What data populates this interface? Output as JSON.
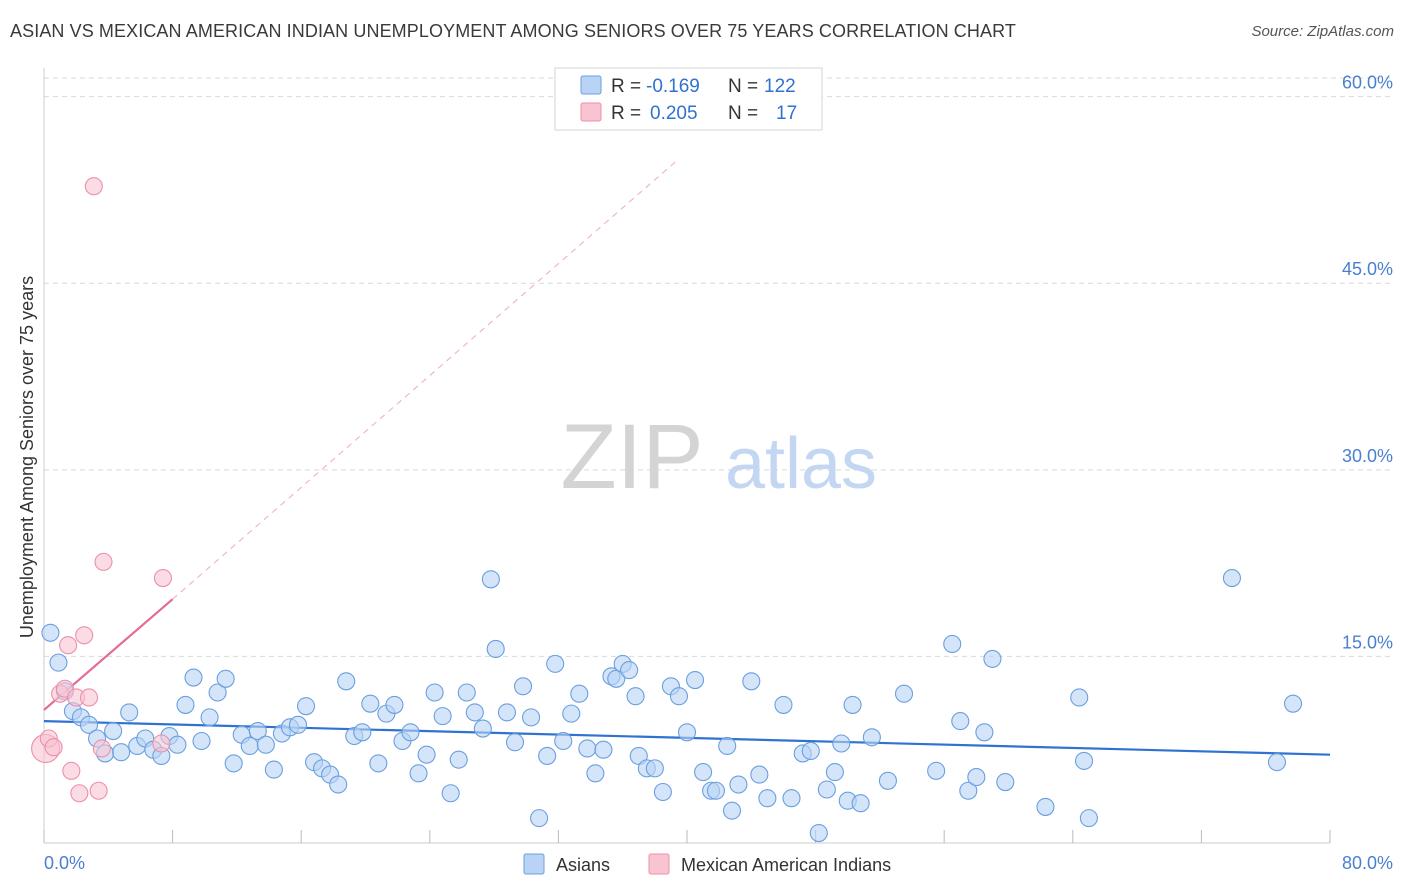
{
  "title": "ASIAN VS MEXICAN AMERICAN INDIAN UNEMPLOYMENT AMONG SENIORS OVER 75 YEARS CORRELATION CHART",
  "source": "Source: ZipAtlas.com",
  "watermark": {
    "zip": "ZIP",
    "atlas": "atlas"
  },
  "colors": {
    "asian_fill": "#b9d3f5",
    "asian_stroke": "#6a9fe0",
    "asian_line": "#2f72d0",
    "mex_fill": "#f8c4d2",
    "mex_stroke": "#ec8fab",
    "mex_line": "#e46b93",
    "grid": "#d9d9d9",
    "axis_text": "#4a7fd0"
  },
  "legend": {
    "rows": [
      {
        "r_label": "R =",
        "r_value": "-0.169",
        "n_label": "N =",
        "n_value": "122"
      },
      {
        "r_label": "R =",
        "r_value": "0.205",
        "n_label": "N =",
        "n_value": "17"
      }
    ]
  },
  "chart_data": {
    "type": "scatter",
    "title": "ASIAN VS MEXICAN AMERICAN INDIAN UNEMPLOYMENT AMONG SENIORS OVER 75 YEARS CORRELATION CHART",
    "xlabel": "",
    "ylabel": "Unemployment Among Seniors over 75 years",
    "xlim": [
      0,
      80
    ],
    "ylim": [
      0,
      61.5
    ],
    "x_tick_labels": [
      "0.0%",
      "80.0%"
    ],
    "y_ticks": [
      15,
      30,
      45,
      60
    ],
    "y_tick_labels": [
      "15.0%",
      "30.0%",
      "45.0%",
      "60.0%"
    ],
    "grid": true,
    "legend_position": "top-center",
    "series": [
      {
        "name": "Asians",
        "stats": {
          "R": -0.169,
          "N": 122
        },
        "trend": {
          "x": [
            0,
            80
          ],
          "y": [
            9.8,
            7.1
          ]
        },
        "points": [
          [
            0.4,
            16.9
          ],
          [
            0.9,
            14.5
          ],
          [
            1.3,
            12.2
          ],
          [
            1.8,
            10.6
          ],
          [
            2.3,
            10.1
          ],
          [
            2.8,
            9.5
          ],
          [
            3.3,
            8.4
          ],
          [
            3.8,
            7.2
          ],
          [
            4.3,
            9.0
          ],
          [
            4.8,
            7.3
          ],
          [
            5.3,
            10.5
          ],
          [
            5.8,
            7.8
          ],
          [
            6.3,
            8.4
          ],
          [
            6.8,
            7.5
          ],
          [
            7.3,
            7.0
          ],
          [
            7.8,
            8.6
          ],
          [
            8.3,
            7.9
          ],
          [
            8.8,
            11.1
          ],
          [
            9.3,
            13.3
          ],
          [
            9.8,
            8.2
          ],
          [
            10.3,
            10.1
          ],
          [
            10.8,
            12.1
          ],
          [
            11.3,
            13.2
          ],
          [
            11.8,
            6.4
          ],
          [
            12.3,
            8.7
          ],
          [
            12.8,
            7.8
          ],
          [
            13.3,
            9.0
          ],
          [
            13.8,
            7.9
          ],
          [
            14.3,
            5.9
          ],
          [
            14.8,
            8.8
          ],
          [
            15.3,
            9.3
          ],
          [
            15.8,
            9.5
          ],
          [
            16.3,
            11.0
          ],
          [
            16.8,
            6.5
          ],
          [
            17.3,
            6.0
          ],
          [
            17.8,
            5.5
          ],
          [
            18.3,
            4.7
          ],
          [
            18.8,
            13.0
          ],
          [
            19.3,
            8.6
          ],
          [
            19.8,
            8.9
          ],
          [
            20.3,
            11.2
          ],
          [
            20.8,
            6.4
          ],
          [
            21.3,
            10.4
          ],
          [
            21.8,
            11.1
          ],
          [
            22.3,
            8.2
          ],
          [
            22.8,
            8.9
          ],
          [
            23.3,
            5.6
          ],
          [
            23.8,
            7.1
          ],
          [
            24.3,
            12.1
          ],
          [
            24.8,
            10.2
          ],
          [
            25.3,
            4.0
          ],
          [
            25.8,
            6.7
          ],
          [
            26.3,
            12.1
          ],
          [
            26.8,
            10.5
          ],
          [
            27.3,
            9.2
          ],
          [
            27.8,
            21.2
          ],
          [
            28.1,
            15.6
          ],
          [
            28.8,
            10.5
          ],
          [
            29.3,
            8.1
          ],
          [
            29.8,
            12.6
          ],
          [
            30.3,
            10.1
          ],
          [
            30.8,
            2.0
          ],
          [
            31.3,
            7.0
          ],
          [
            31.8,
            14.4
          ],
          [
            32.3,
            8.2
          ],
          [
            32.8,
            10.4
          ],
          [
            33.3,
            12.0
          ],
          [
            33.8,
            7.6
          ],
          [
            34.3,
            5.6
          ],
          [
            34.8,
            7.5
          ],
          [
            35.3,
            13.4
          ],
          [
            35.6,
            13.2
          ],
          [
            36.0,
            14.4
          ],
          [
            36.4,
            13.9
          ],
          [
            36.8,
            11.8
          ],
          [
            37.0,
            7.0
          ],
          [
            37.5,
            6.0
          ],
          [
            38.0,
            6.0
          ],
          [
            38.5,
            4.1
          ],
          [
            39.0,
            12.6
          ],
          [
            39.5,
            11.8
          ],
          [
            40.0,
            8.9
          ],
          [
            40.5,
            13.1
          ],
          [
            41.0,
            5.7
          ],
          [
            41.5,
            4.2
          ],
          [
            41.8,
            4.2
          ],
          [
            42.5,
            7.8
          ],
          [
            42.8,
            2.6
          ],
          [
            43.2,
            4.7
          ],
          [
            44.0,
            13.0
          ],
          [
            44.5,
            5.5
          ],
          [
            45.0,
            3.6
          ],
          [
            46.0,
            11.1
          ],
          [
            46.5,
            3.6
          ],
          [
            47.2,
            7.2
          ],
          [
            47.7,
            7.4
          ],
          [
            48.2,
            0.8
          ],
          [
            48.7,
            4.3
          ],
          [
            49.2,
            5.7
          ],
          [
            49.6,
            8.0
          ],
          [
            50.0,
            3.4
          ],
          [
            50.3,
            11.1
          ],
          [
            50.8,
            3.2
          ],
          [
            51.5,
            8.5
          ],
          [
            52.5,
            5.0
          ],
          [
            53.5,
            12.0
          ],
          [
            55.5,
            5.8
          ],
          [
            56.5,
            16.0
          ],
          [
            57.0,
            9.8
          ],
          [
            57.5,
            4.2
          ],
          [
            58.0,
            5.3
          ],
          [
            58.5,
            8.9
          ],
          [
            59.0,
            14.8
          ],
          [
            59.8,
            4.9
          ],
          [
            62.3,
            2.9
          ],
          [
            64.4,
            11.7
          ],
          [
            64.7,
            6.6
          ],
          [
            65.0,
            2.0
          ],
          [
            73.9,
            21.3
          ],
          [
            76.7,
            6.5
          ],
          [
            77.7,
            11.2
          ]
        ]
      },
      {
        "name": "Mexican American Indians",
        "stats": {
          "R": 0.205,
          "N": 17
        },
        "trend_solid": {
          "x": [
            0,
            8
          ],
          "y": [
            10.7,
            19.6
          ]
        },
        "trend_dashed": {
          "x": [
            8,
            39.5
          ],
          "y": [
            19.6,
            55.0
          ]
        },
        "points": [
          [
            0.1,
            7.6
          ],
          [
            0.3,
            8.4
          ],
          [
            0.6,
            7.7
          ],
          [
            1.0,
            12.0
          ],
          [
            1.3,
            12.4
          ],
          [
            1.5,
            15.9
          ],
          [
            1.7,
            5.8
          ],
          [
            2.0,
            11.7
          ],
          [
            2.2,
            4.0
          ],
          [
            2.5,
            16.7
          ],
          [
            2.8,
            11.7
          ],
          [
            3.4,
            4.2
          ],
          [
            3.6,
            7.6
          ],
          [
            3.7,
            22.6
          ],
          [
            7.3,
            8.0
          ],
          [
            7.4,
            21.3
          ],
          [
            3.1,
            52.8
          ]
        ]
      }
    ]
  }
}
